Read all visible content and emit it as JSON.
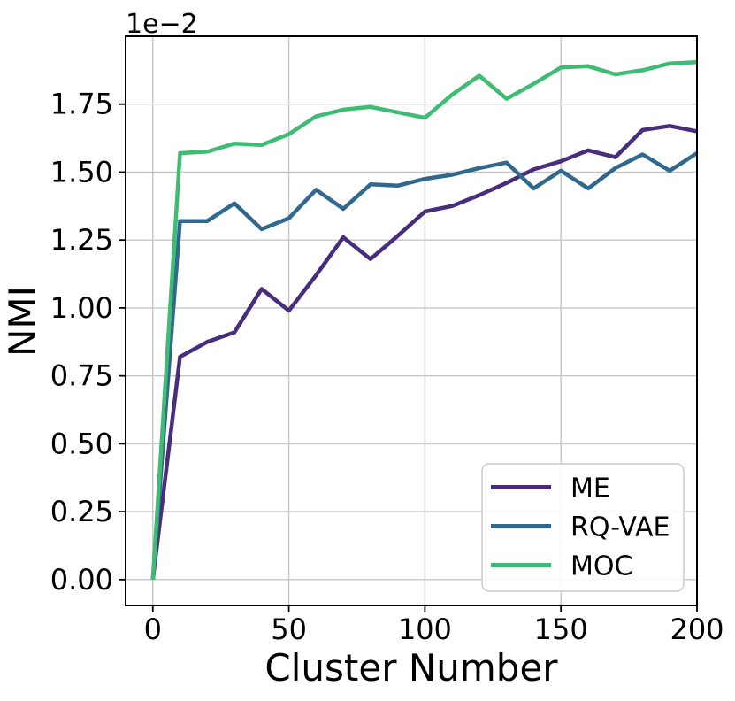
{
  "chart_data": {
    "type": "line",
    "title": "",
    "xlabel": "Cluster Number",
    "ylabel": "NMI",
    "offset_text": "1e−2",
    "grid": true,
    "legend_position": "lower right",
    "xlim": [
      -10,
      200
    ],
    "ylim_e2": [
      -0.095,
      2.0
    ],
    "xticks": [
      0,
      50,
      100,
      150,
      200
    ],
    "ytick_labels": [
      "0.00",
      "0.25",
      "0.50",
      "0.75",
      "1.00",
      "1.25",
      "1.50",
      "1.75"
    ],
    "x": [
      0,
      10,
      20,
      30,
      40,
      50,
      60,
      70,
      80,
      90,
      100,
      110,
      120,
      130,
      140,
      150,
      160,
      170,
      180,
      190,
      200
    ],
    "series": [
      {
        "name": "ME",
        "color": "#472d7c",
        "values_e2": [
          0.0,
          0.82,
          0.875,
          0.91,
          1.07,
          0.99,
          1.12,
          1.26,
          1.18,
          1.265,
          1.355,
          1.375,
          1.415,
          1.46,
          1.51,
          1.54,
          1.58,
          1.555,
          1.655,
          1.67,
          1.65
        ]
      },
      {
        "name": "RQ-VAE",
        "color": "#31688e",
        "values_e2": [
          0.0,
          1.32,
          1.32,
          1.385,
          1.29,
          1.33,
          1.435,
          1.365,
          1.455,
          1.45,
          1.475,
          1.49,
          1.515,
          1.535,
          1.44,
          1.505,
          1.44,
          1.515,
          1.565,
          1.505,
          1.57
        ]
      },
      {
        "name": "MOC",
        "color": "#3fbc73",
        "values_e2": [
          0.0,
          1.57,
          1.575,
          1.605,
          1.6,
          1.64,
          1.705,
          1.73,
          1.74,
          1.72,
          1.7,
          1.785,
          1.855,
          1.77,
          1.825,
          1.885,
          1.89,
          1.86,
          1.875,
          1.9,
          1.905
        ]
      }
    ],
    "style": {
      "grid_color": "#c6c6c6",
      "spine_color": "#000000",
      "legend_edge_color": "#cccccc",
      "legend_face_color": "#ffffff",
      "line_width": 4.5
    }
  }
}
